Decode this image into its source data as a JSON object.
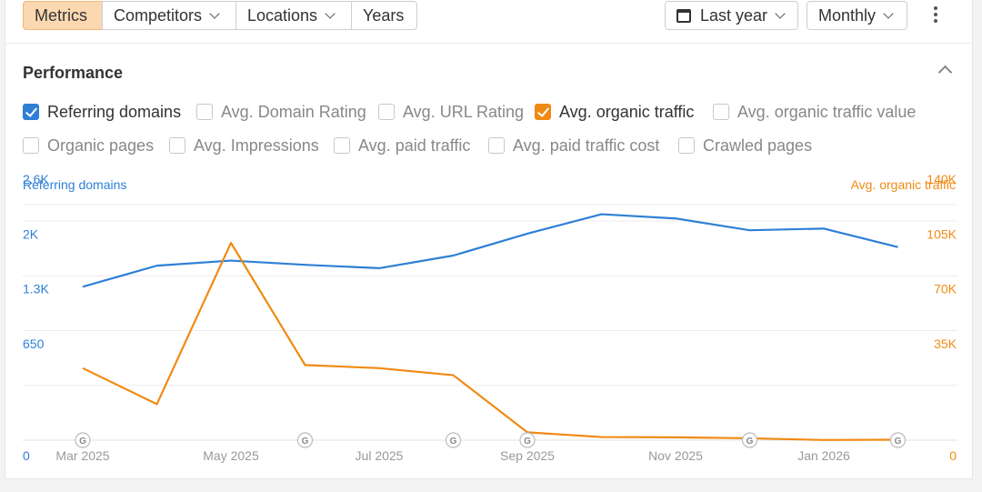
{
  "toolbar": {
    "tabs": [
      {
        "label": "Metrics",
        "active": true
      },
      {
        "label": "Competitors",
        "dropdown": true
      },
      {
        "label": "Locations",
        "dropdown": true
      },
      {
        "label": "Years"
      }
    ],
    "date_range": {
      "label": "Last year",
      "icon": "calendar-icon"
    },
    "interval": {
      "label": "Monthly"
    },
    "more_icon": "kebab-icon"
  },
  "section": {
    "title": "Performance",
    "collapse_icon": "chevron-up-icon"
  },
  "metrics": [
    {
      "label": "Referring domains",
      "checked": true,
      "color": "#2f7fd5"
    },
    {
      "label": "Avg. Domain Rating",
      "checked": false
    },
    {
      "label": "Avg. URL Rating",
      "checked": false
    },
    {
      "label": "Avg. organic traffic",
      "checked": true,
      "color": "#f08a14"
    },
    {
      "label": "Avg. organic traffic value",
      "checked": false
    },
    {
      "label": "Organic pages",
      "checked": false
    },
    {
      "label": "Avg. Impressions",
      "checked": false
    },
    {
      "label": "Avg. paid traffic",
      "checked": false
    },
    {
      "label": "Avg. paid traffic cost",
      "checked": false
    },
    {
      "label": "Crawled pages",
      "checked": false
    }
  ],
  "chart_data": {
    "type": "line",
    "x": [
      "Mar 2025",
      "Apr 2025",
      "May 2025",
      "Jun 2025",
      "Jul 2025",
      "Aug 2025",
      "Sep 2025",
      "Oct 2025",
      "Nov 2025",
      "Dec 2025",
      "Jan 2026",
      "Feb 2026"
    ],
    "x_tick_labels": [
      "Mar 2025",
      "May 2025",
      "Jul 2025",
      "Sep 2025",
      "Nov 2025",
      "Jan 2026"
    ],
    "left_axis": {
      "label": "Referring domains",
      "ticks": [
        "0",
        "650",
        "1.3K",
        "2K",
        "2.6K"
      ],
      "tick_values": [
        0,
        650,
        1300,
        1950,
        2600
      ],
      "range": [
        0,
        2600
      ],
      "color": "#2f7fd5"
    },
    "right_axis": {
      "label": "Avg. organic traffic",
      "ticks": [
        "0",
        "35K",
        "70K",
        "105K",
        "140K"
      ],
      "tick_values": [
        0,
        35000,
        70000,
        105000,
        140000
      ],
      "range": [
        0,
        140000
      ],
      "color": "#f08a14"
    },
    "series": [
      {
        "name": "Referring domains",
        "axis": "left",
        "color": "#2f7fd5",
        "values": [
          1820,
          2070,
          2130,
          2080,
          2040,
          2190,
          2450,
          2680,
          2630,
          2490,
          2510,
          2290
        ]
      },
      {
        "name": "Avg. organic traffic",
        "axis": "right",
        "color": "#f08a14",
        "values": [
          46000,
          23000,
          126000,
          48000,
          46000,
          41500,
          5000,
          2000,
          1800,
          1200,
          100,
          300
        ]
      }
    ],
    "google_update_markers": [
      "Mar 2025",
      "Jun 2025",
      "Aug 2025",
      "Sep 2025",
      "Dec 2025",
      "Feb 2026"
    ],
    "google_marker_label": "G",
    "grid": true
  }
}
